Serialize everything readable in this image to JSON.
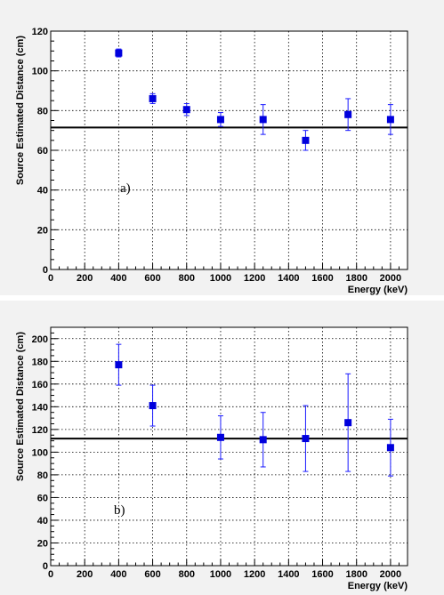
{
  "chart_data": [
    {
      "type": "scatter",
      "panel_label": "a)",
      "xlabel": "Energy (keV)",
      "ylabel": "Source Estimated Distance (cm)",
      "xlim": [
        0,
        2100
      ],
      "ylim": [
        0,
        120
      ],
      "xticks": [
        0,
        200,
        400,
        600,
        800,
        1000,
        1200,
        1400,
        1600,
        1800,
        2000
      ],
      "yticks": [
        0,
        20,
        40,
        60,
        80,
        100,
        120
      ],
      "grid": true,
      "reference_line": 71.5,
      "points": [
        {
          "x": 400,
          "y": 109,
          "err": 2
        },
        {
          "x": 600,
          "y": 86,
          "err": 2.5
        },
        {
          "x": 800,
          "y": 80.5,
          "err": 3
        },
        {
          "x": 1000,
          "y": 75.5,
          "err": 3.5
        },
        {
          "x": 1250,
          "y": 75.5,
          "err": 7.5
        },
        {
          "x": 1500,
          "y": 65,
          "err": 5
        },
        {
          "x": 1750,
          "y": 78,
          "err": 8
        },
        {
          "x": 2000,
          "y": 75.5,
          "err": 7.5
        }
      ],
      "colors": {
        "points": "#0000dd",
        "error_bars": "#1a1aff"
      }
    },
    {
      "type": "scatter",
      "panel_label": "b)",
      "xlabel": "Energy (keV)",
      "ylabel": "Source Estimated Distance (cm)",
      "xlim": [
        0,
        2100
      ],
      "ylim": [
        0,
        210
      ],
      "xticks": [
        0,
        200,
        400,
        600,
        800,
        1000,
        1200,
        1400,
        1600,
        1800,
        2000
      ],
      "yticks": [
        0,
        20,
        40,
        60,
        80,
        100,
        120,
        140,
        160,
        180,
        200
      ],
      "grid": true,
      "reference_line": 112,
      "points": [
        {
          "x": 400,
          "y": 177,
          "err": 18
        },
        {
          "x": 600,
          "y": 141,
          "err": 18
        },
        {
          "x": 1000,
          "y": 113,
          "err": 19
        },
        {
          "x": 1250,
          "y": 111,
          "err": 24
        },
        {
          "x": 1500,
          "y": 112,
          "err": 29
        },
        {
          "x": 1750,
          "y": 126,
          "err": 43
        },
        {
          "x": 2000,
          "y": 104,
          "err": 25
        }
      ],
      "colors": {
        "points": "#0000dd",
        "error_bars": "#1a1aff"
      }
    }
  ]
}
